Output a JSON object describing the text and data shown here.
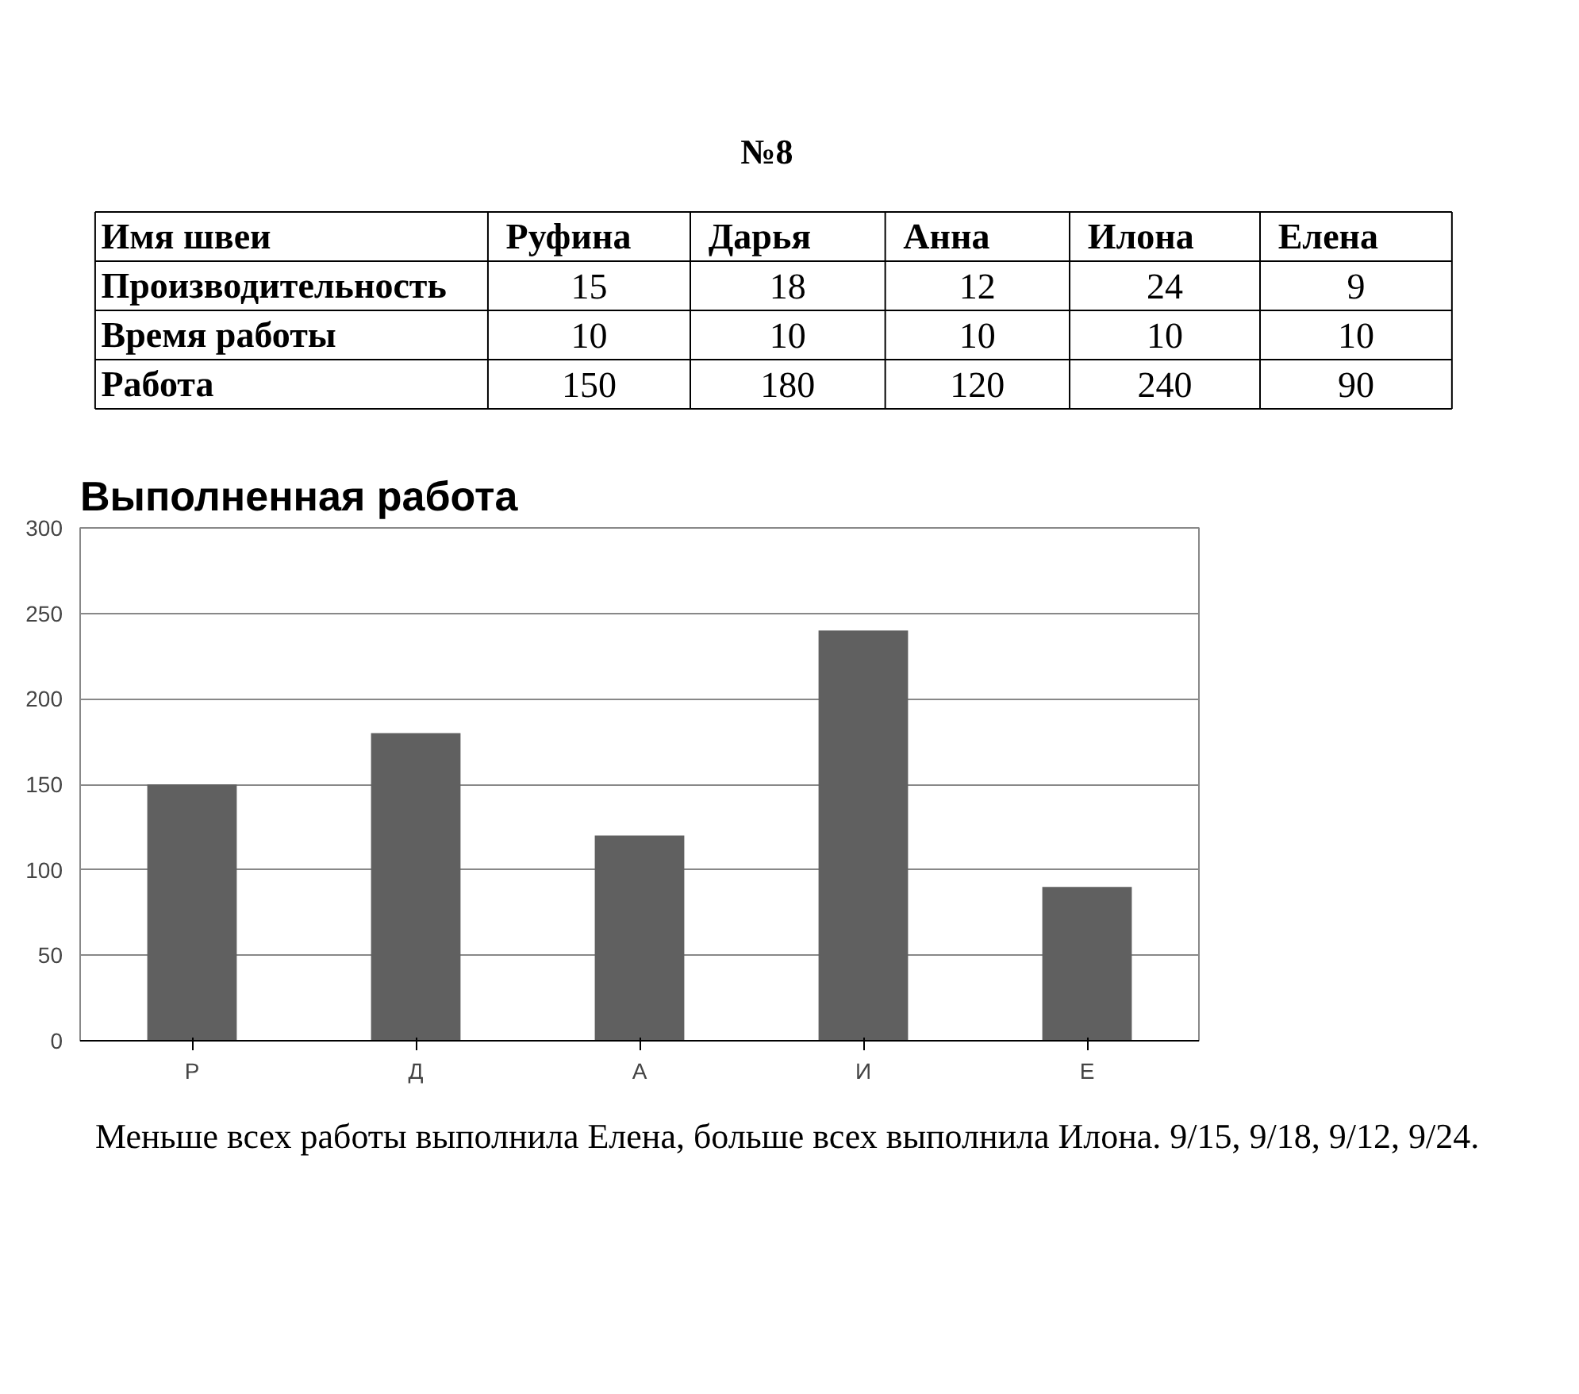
{
  "chart_data": [
    {
      "type": "other",
      "title": "№8",
      "annotations": [
        "Имя швеи",
        "Руфина",
        "Дарья",
        "Анна",
        "Илона",
        "Елена",
        "Производительность",
        "15",
        "18",
        "12",
        "24",
        "9",
        "Время работы",
        "10",
        "10",
        "10",
        "10",
        "10",
        "Работа",
        "150",
        "180",
        "120",
        "240",
        "90"
      ]
    },
    {
      "type": "bar",
      "title": "Выполненная работа",
      "categories": [
        "Р",
        "Д",
        "А",
        "И",
        "Е"
      ],
      "values": [
        150,
        180,
        120,
        240,
        90
      ],
      "color": "#606060",
      "ylim": [
        0,
        300
      ],
      "yticks": [
        0,
        50,
        100,
        150,
        200,
        250,
        300
      ],
      "grid": "y"
    },
    {
      "type": "other",
      "annotations": [
        "Меньше всех работы выполнила Елена, больше всех выполнила Илона. 9/15, 9/18, 9/12, 9/24."
      ]
    }
  ]
}
